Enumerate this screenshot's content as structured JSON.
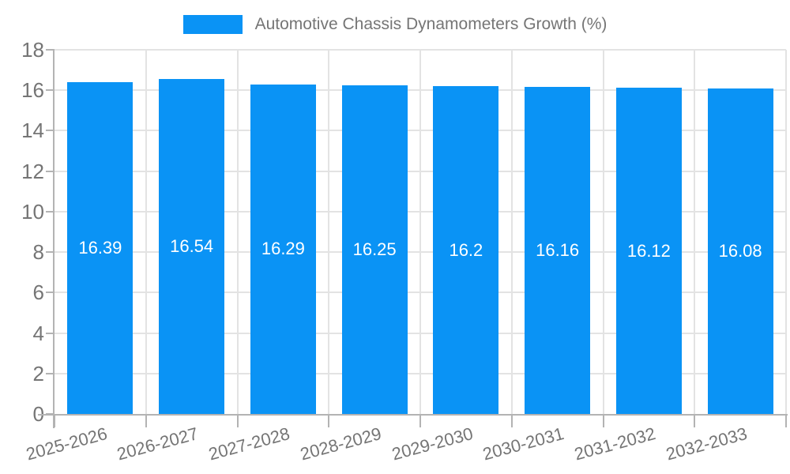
{
  "legend": {
    "label": "Automotive Chassis Dynamometers Growth (%)"
  },
  "colors": {
    "bar": "#0A93F5",
    "grid": "#E3E3E3",
    "axis": "#B3B3B3",
    "tick_text": "#757575",
    "value_text": "#FFFFFF",
    "background": "#FFFFFF"
  },
  "chart_data": {
    "type": "bar",
    "title": "Automotive Chassis Dynamometers Growth (%)",
    "categories": [
      "2025-2026",
      "2026-2027",
      "2027-2028",
      "2028-2029",
      "2029-2030",
      "2030-2031",
      "2031-2032",
      "2032-2033"
    ],
    "values": [
      16.39,
      16.54,
      16.29,
      16.25,
      16.2,
      16.16,
      16.12,
      16.08
    ],
    "xlabel": "",
    "ylabel": "",
    "ylim": [
      0,
      18
    ],
    "yticks": [
      0,
      2,
      4,
      6,
      8,
      10,
      12,
      14,
      16,
      18
    ],
    "grid": true,
    "legend_position": "top",
    "value_label_position": "inside-center",
    "x_label_rotation_deg": -15
  }
}
